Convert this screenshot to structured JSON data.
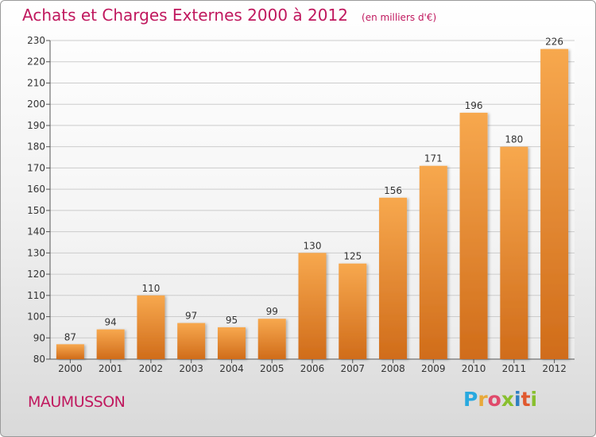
{
  "title": "Achats et Charges Externes 2000 à 2012",
  "unit_note": "(en milliers d'€)",
  "commune": "MAUMUSSON",
  "brand": {
    "letters": [
      "P",
      "r",
      "o",
      "x",
      "i",
      "t",
      "i"
    ],
    "colors": [
      "#29a9df",
      "#e8a93a",
      "#e04a6b",
      "#88bf2e",
      "#2e7fc2",
      "#e0592e",
      "#88bf2e"
    ]
  },
  "colors": {
    "title": "#c0185e",
    "bar_light": "#f7a84e",
    "bar_dark": "#d06c1a",
    "grid": "#cccccc"
  },
  "chart_data": {
    "type": "bar",
    "categories": [
      "2000",
      "2001",
      "2002",
      "2003",
      "2004",
      "2005",
      "2006",
      "2007",
      "2008",
      "2009",
      "2010",
      "2011",
      "2012"
    ],
    "values": [
      87,
      94,
      110,
      97,
      95,
      99,
      130,
      125,
      156,
      171,
      196,
      180,
      226
    ],
    "ylim": [
      80,
      230
    ],
    "yticks": [
      80,
      90,
      100,
      110,
      120,
      130,
      140,
      150,
      160,
      170,
      180,
      190,
      200,
      210,
      220,
      230
    ],
    "grid": true,
    "legend": "none",
    "data_labels": true
  }
}
